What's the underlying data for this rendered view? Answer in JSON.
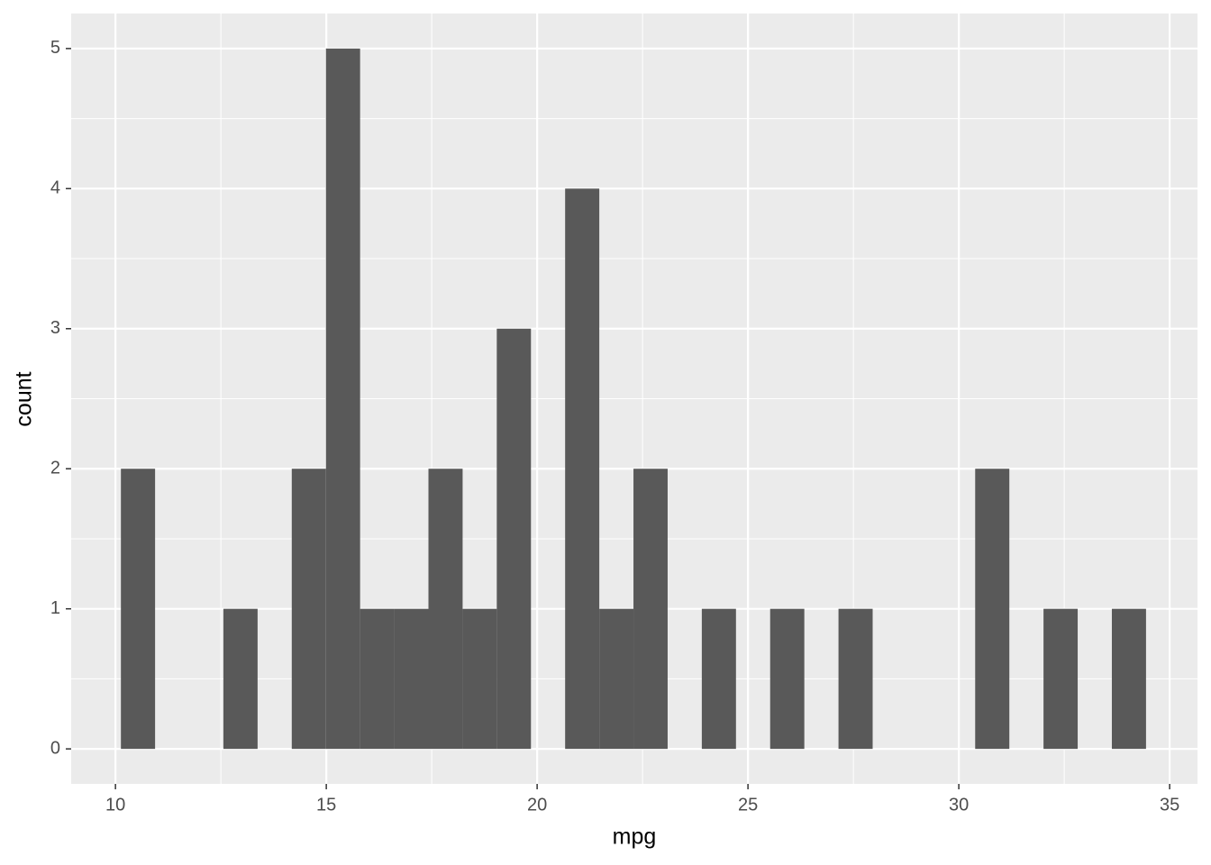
{
  "chart_data": {
    "type": "histogram",
    "x_label": "mpg",
    "y_label": "count",
    "bins": [
      10.1293,
      10.9397,
      11.75,
      12.5603,
      13.3707,
      14.181,
      14.9914,
      15.8017,
      16.6121,
      17.4224,
      18.2328,
      19.0431,
      19.8534,
      20.6638,
      21.4741,
      22.2845,
      23.0948,
      23.9052,
      24.7155,
      25.5259,
      26.3362,
      27.1466,
      27.9569,
      28.7672,
      29.5776,
      30.3879,
      31.1983,
      32.0086,
      32.819,
      33.6293,
      34.4397
    ],
    "values": [
      2,
      0,
      0,
      1,
      0,
      2,
      5,
      1,
      1,
      2,
      1,
      3,
      0,
      4,
      1,
      2,
      0,
      1,
      0,
      1,
      0,
      1,
      0,
      0,
      0,
      2,
      0,
      1,
      0,
      1
    ],
    "color": "#595959",
    "xlim": [
      8.95,
      35.66
    ],
    "xticks": [
      10,
      15,
      20,
      25,
      30,
      35
    ],
    "ylim": [
      -0.25,
      5.25
    ],
    "yticks": [
      0,
      1,
      2,
      3,
      4,
      5
    ],
    "grid": true,
    "minor_grid": true
  }
}
